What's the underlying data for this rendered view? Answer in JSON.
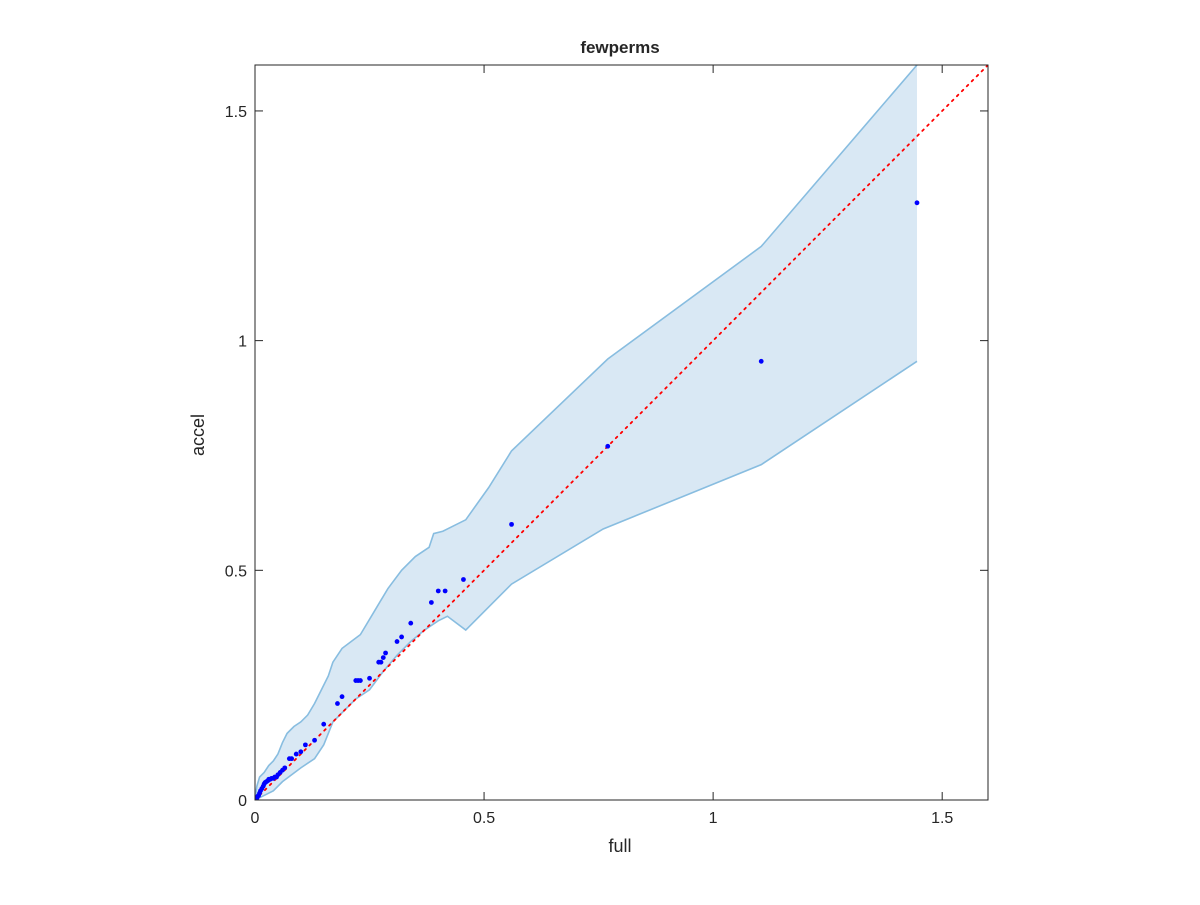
{
  "chart_data": {
    "type": "scatter",
    "title": "fewperms",
    "xlabel": "full",
    "ylabel": "accel",
    "xlim": [
      0,
      1.6
    ],
    "ylim": [
      0,
      1.6
    ],
    "x_ticks": [
      0,
      0.5,
      1,
      1.5
    ],
    "x_tick_labels": [
      "0",
      "0.5",
      "1",
      "1.5"
    ],
    "y_ticks": [
      0,
      0.5,
      1,
      1.5
    ],
    "y_tick_labels": [
      "0",
      "0.5",
      "1",
      "1.5"
    ],
    "grid": false,
    "legend": "none",
    "colors": {
      "points": "#0000ff",
      "reference_line": "#ff0000",
      "band_fill": "#d9e8f4",
      "band_edge": "#88bde0",
      "axes": "#262626"
    },
    "reference_line": {
      "style": "dotted",
      "x": [
        0,
        1.6
      ],
      "y": [
        0,
        1.6
      ]
    },
    "band": {
      "upper": [
        [
          0,
          0
        ],
        [
          0.004,
          0.03
        ],
        [
          0.01,
          0.05
        ],
        [
          0.02,
          0.06
        ],
        [
          0.03,
          0.075
        ],
        [
          0.04,
          0.085
        ],
        [
          0.05,
          0.1
        ],
        [
          0.06,
          0.125
        ],
        [
          0.07,
          0.145
        ],
        [
          0.085,
          0.16
        ],
        [
          0.1,
          0.17
        ],
        [
          0.115,
          0.185
        ],
        [
          0.13,
          0.21
        ],
        [
          0.145,
          0.24
        ],
        [
          0.16,
          0.27
        ],
        [
          0.17,
          0.3
        ],
        [
          0.19,
          0.33
        ],
        [
          0.21,
          0.345
        ],
        [
          0.23,
          0.36
        ],
        [
          0.26,
          0.41
        ],
        [
          0.29,
          0.46
        ],
        [
          0.32,
          0.5
        ],
        [
          0.35,
          0.53
        ],
        [
          0.38,
          0.55
        ],
        [
          0.39,
          0.58
        ],
        [
          0.41,
          0.585
        ],
        [
          0.42,
          0.59
        ],
        [
          0.46,
          0.61
        ],
        [
          0.51,
          0.68
        ],
        [
          0.56,
          0.76
        ],
        [
          0.77,
          0.96
        ],
        [
          1.105,
          1.205
        ],
        [
          1.445,
          1.6
        ]
      ],
      "lower": [
        [
          0,
          0
        ],
        [
          0.01,
          0.005
        ],
        [
          0.02,
          0.01
        ],
        [
          0.04,
          0.02
        ],
        [
          0.06,
          0.04
        ],
        [
          0.08,
          0.055
        ],
        [
          0.1,
          0.07
        ],
        [
          0.13,
          0.09
        ],
        [
          0.15,
          0.12
        ],
        [
          0.17,
          0.17
        ],
        [
          0.2,
          0.2
        ],
        [
          0.22,
          0.22
        ],
        [
          0.25,
          0.24
        ],
        [
          0.28,
          0.28
        ],
        [
          0.31,
          0.315
        ],
        [
          0.34,
          0.345
        ],
        [
          0.37,
          0.37
        ],
        [
          0.4,
          0.39
        ],
        [
          0.42,
          0.4
        ],
        [
          0.46,
          0.37
        ],
        [
          0.51,
          0.42
        ],
        [
          0.56,
          0.47
        ],
        [
          0.76,
          0.59
        ],
        [
          1.105,
          0.73
        ],
        [
          1.445,
          0.955
        ]
      ]
    },
    "points": {
      "x": [
        0.002,
        0.004,
        0.006,
        0.008,
        0.01,
        0.012,
        0.015,
        0.018,
        0.02,
        0.022,
        0.025,
        0.028,
        0.03,
        0.033,
        0.036,
        0.04,
        0.043,
        0.047,
        0.05,
        0.055,
        0.06,
        0.065,
        0.075,
        0.08,
        0.09,
        0.1,
        0.11,
        0.13,
        0.15,
        0.18,
        0.19,
        0.22,
        0.225,
        0.23,
        0.25,
        0.27,
        0.275,
        0.28,
        0.285,
        0.31,
        0.32,
        0.34,
        0.385,
        0.4,
        0.415,
        0.455,
        0.56,
        0.77,
        1.105,
        1.445
      ],
      "y": [
        0.002,
        0.004,
        0.008,
        0.01,
        0.015,
        0.02,
        0.025,
        0.03,
        0.035,
        0.038,
        0.04,
        0.042,
        0.045,
        0.045,
        0.047,
        0.047,
        0.05,
        0.05,
        0.055,
        0.06,
        0.065,
        0.07,
        0.09,
        0.09,
        0.1,
        0.105,
        0.12,
        0.13,
        0.165,
        0.21,
        0.225,
        0.26,
        0.26,
        0.26,
        0.265,
        0.3,
        0.3,
        0.31,
        0.32,
        0.345,
        0.355,
        0.385,
        0.43,
        0.455,
        0.455,
        0.48,
        0.6,
        0.77,
        0.955,
        1.3
      ]
    }
  }
}
